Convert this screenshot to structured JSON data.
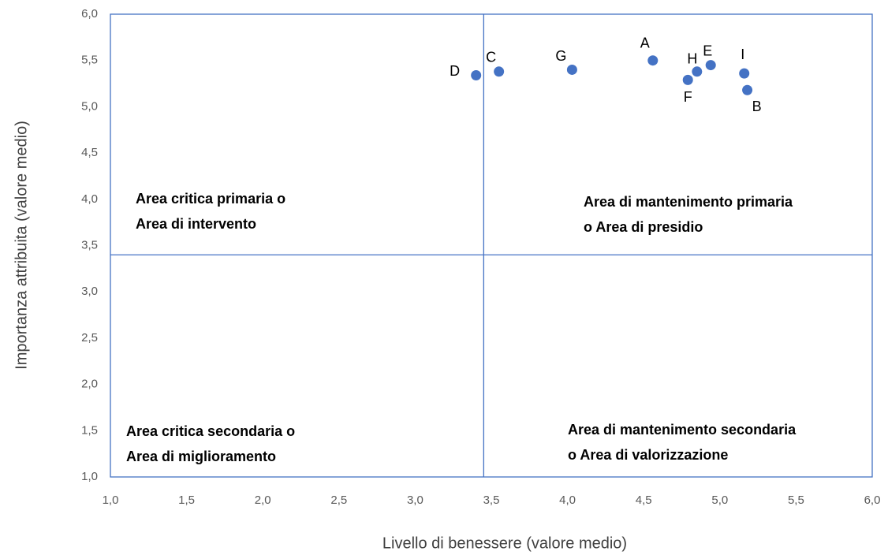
{
  "chart_data": {
    "type": "scatter",
    "x_label": "Livello di benessere (valore medio)",
    "y_label": "Importanza attribuita (valore medio)",
    "color": "#4472c4",
    "points": [
      "D",
      "C",
      "G",
      "A",
      "F",
      "H",
      "E",
      "I",
      "B"
    ],
    "x": [
      3.4,
      3.55,
      4.03,
      4.56,
      4.79,
      4.85,
      4.94,
      5.16,
      5.18
    ],
    "values": [
      5.34,
      5.38,
      5.4,
      5.5,
      5.29,
      5.38,
      5.45,
      5.36,
      5.18
    ],
    "x_threshold": 3.45,
    "y_threshold": 3.4,
    "xlim": [
      1.0,
      6.0
    ],
    "ylim": [
      1.0,
      6.0
    ],
    "xticks": [
      {
        "value": 1.0,
        "label": "1,0"
      },
      {
        "value": 1.5,
        "label": "1,5"
      },
      {
        "value": 2.0,
        "label": "2,0"
      },
      {
        "value": 2.5,
        "label": "2,5"
      },
      {
        "value": 3.0,
        "label": "3,0"
      },
      {
        "value": 3.5,
        "label": "3,5"
      },
      {
        "value": 4.0,
        "label": "4,0"
      },
      {
        "value": 4.5,
        "label": "4,5"
      },
      {
        "value": 5.0,
        "label": "5,0"
      },
      {
        "value": 5.5,
        "label": "5,5"
      },
      {
        "value": 6.0,
        "label": "6,0"
      }
    ],
    "yticks": [
      {
        "value": 1.0,
        "label": "1,0"
      },
      {
        "value": 1.5,
        "label": "1,5"
      },
      {
        "value": 2.0,
        "label": "2,0"
      },
      {
        "value": 2.5,
        "label": "2,5"
      },
      {
        "value": 3.0,
        "label": "3,0"
      },
      {
        "value": 3.5,
        "label": "3,5"
      },
      {
        "value": 4.0,
        "label": "4,0"
      },
      {
        "value": 4.5,
        "label": "4,5"
      },
      {
        "value": 5.0,
        "label": "5,0"
      },
      {
        "value": 5.5,
        "label": "5,5"
      },
      {
        "value": 6.0,
        "label": "6,0"
      }
    ],
    "annotations": [
      [
        "Area critica primaria o",
        "Area di intervento"
      ],
      [
        "Area di mantenimento primaria",
        "o Area di presidio"
      ],
      [
        "Area critica secondaria o",
        "Area di miglioramento"
      ],
      [
        "Area di mantenimento secondaria",
        "o Area di valorizzazione"
      ]
    ]
  }
}
